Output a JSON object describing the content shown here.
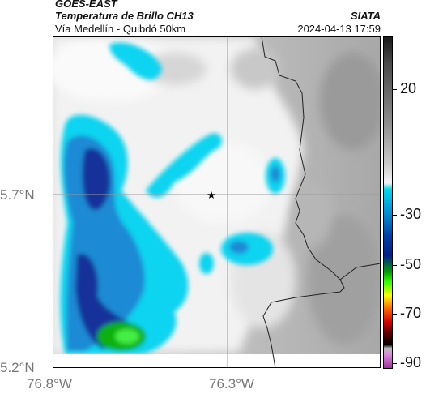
{
  "header": {
    "satellite": "GOES-EAST",
    "product": "Temperatura de Brillo CH13",
    "route": "Vía Medellín - Quibdó 50km",
    "org": "SIATA",
    "timestamp": "2024-04-13 17:59"
  },
  "axes": {
    "lat_labels": [
      "5.7°N",
      "5.2°N"
    ],
    "lon_labels": [
      "76.8°W",
      "76.3°W"
    ]
  },
  "colorbar": {
    "tick_labels": [
      "20",
      "-30",
      "-50",
      "-70",
      "-90"
    ],
    "colors": [
      "#1a1a1a",
      "#4a4a4a",
      "#8a8a8a",
      "#c8c8c8",
      "#f4f4f4",
      "#00d7ee",
      "#0090d8",
      "#0040a8",
      "#00208a",
      "#00a000",
      "#33ff00",
      "#ffff00",
      "#ff6a00",
      "#d80000",
      "#6a0000",
      "#000000",
      "#bbbbbb",
      "#dd88dd",
      "#a030a0"
    ]
  },
  "map": {
    "marker": "star-icon",
    "colors": {
      "land_bg": "#cfcfcf",
      "cold_light": "#f0f0f0",
      "cloud_cyan": "#11d4f0",
      "cloud_blue": "#1a8ad4",
      "cloud_deep": "#12309a",
      "cloud_green": "#10b010",
      "border": "#222222"
    }
  }
}
